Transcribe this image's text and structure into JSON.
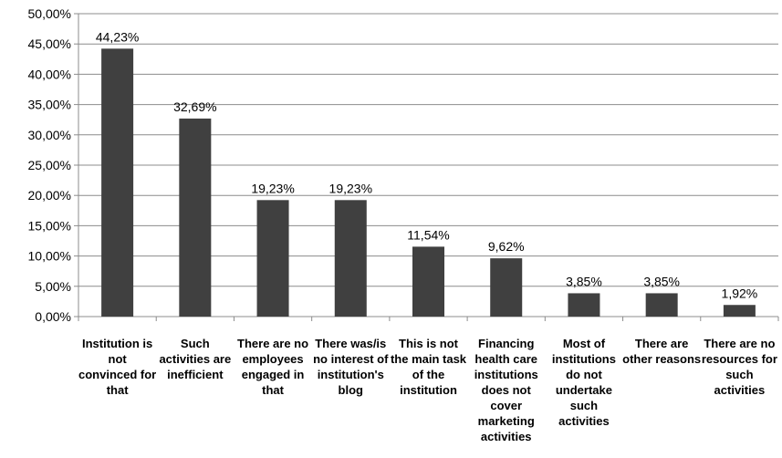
{
  "chart_data": {
    "type": "bar",
    "title": "",
    "xlabel": "",
    "ylabel": "",
    "ylim": [
      0,
      50
    ],
    "y_ticks": [
      0,
      5,
      10,
      15,
      20,
      25,
      30,
      35,
      40,
      45,
      50
    ],
    "y_tick_labels": [
      "0,00%",
      "5,00%",
      "10,00%",
      "15,00%",
      "20,00%",
      "25,00%",
      "30,00%",
      "35,00%",
      "40,00%",
      "45,00%",
      "50,00%"
    ],
    "grid": true,
    "legend": "none",
    "bar_color": "#404040",
    "categories": [
      "Institution is not convinced for that",
      "Such activities are inefficient",
      "There are no employees engaged in that",
      "There was/is no interest of institution's blog",
      "This is not the main task of the institution",
      "Financing health care institutions does not cover marketing activities",
      "Most of institutions do not undertake such activities",
      "There are other reasons",
      "There are no resources for such activities"
    ],
    "values": [
      44.23,
      32.69,
      19.23,
      19.23,
      11.54,
      9.62,
      3.85,
      3.85,
      1.92
    ],
    "data_labels": [
      "44,23%",
      "32,69%",
      "19,23%",
      "19,23%",
      "11,54%",
      "9,62%",
      "3,85%",
      "3,85%",
      "1,92%"
    ]
  }
}
